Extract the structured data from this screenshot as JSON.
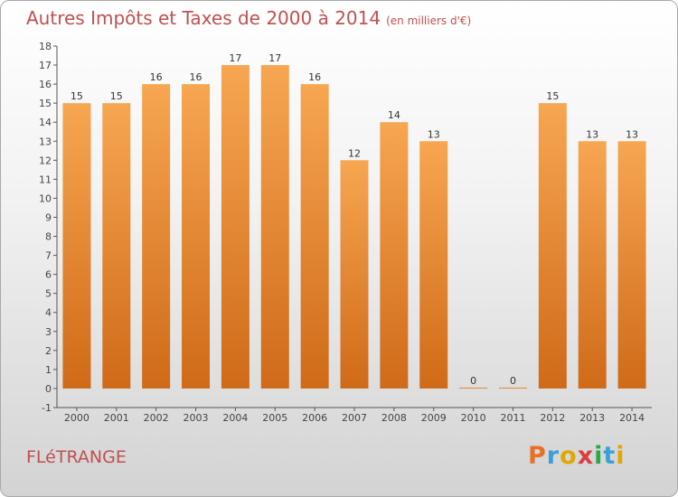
{
  "header": {
    "title": "Autres Impôts et Taxes de 2000 à 2014",
    "subtitle": "(en milliers d'€)"
  },
  "footer": {
    "commune": "FLéTRANGE",
    "logo_text": "Proxiti",
    "logo_colors": [
      "#e8712a",
      "#3aa0d8",
      "#e0a800",
      "#d84040",
      "#2aa84a",
      "#3aa0d8",
      "#e0a800"
    ]
  },
  "chart_data": {
    "type": "bar",
    "categories": [
      "2000",
      "2001",
      "2002",
      "2003",
      "2004",
      "2005",
      "2006",
      "2007",
      "2008",
      "2009",
      "2010",
      "2011",
      "2012",
      "2013",
      "2014"
    ],
    "values": [
      15,
      15,
      16,
      16,
      17,
      17,
      16,
      12,
      14,
      13,
      0,
      0,
      15,
      13,
      13
    ],
    "data_labels": [
      "15",
      "15",
      "16",
      "16",
      "17",
      "17",
      "16",
      "12",
      "14",
      "13",
      "0",
      "0",
      "15",
      "13",
      "13"
    ],
    "title": "Autres Impôts et Taxes de 2000 à 2014",
    "xlabel": "",
    "ylabel": "",
    "ylim": [
      -1,
      18
    ],
    "yticks": [
      "-1",
      "0",
      "1",
      "2",
      "3",
      "4",
      "5",
      "6",
      "7",
      "8",
      "9",
      "10",
      "11",
      "12",
      "13",
      "14",
      "15",
      "16",
      "17",
      "18"
    ],
    "grid": false,
    "legend": "none",
    "bar_color": "#f29a3e",
    "bar_color_dark": "#d26c1a",
    "label_color": "#333333"
  }
}
